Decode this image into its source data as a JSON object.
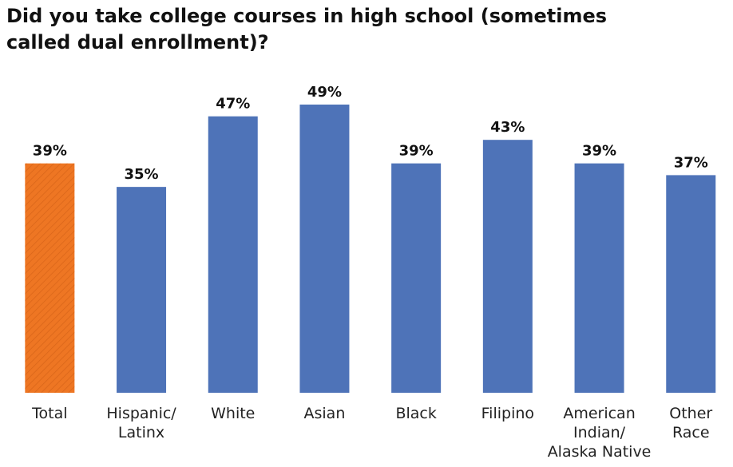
{
  "chart_data": {
    "type": "bar",
    "title": "Did you take college courses in high school (sometimes called dual enrollment)?",
    "categories": [
      [
        "Total"
      ],
      [
        "Hispanic/",
        "Latinx"
      ],
      [
        "White"
      ],
      [
        "Asian"
      ],
      [
        "Black"
      ],
      [
        "Filipino"
      ],
      [
        "American",
        "Indian/",
        "Alaska Native"
      ],
      [
        "Other",
        "Race"
      ]
    ],
    "values": [
      39,
      35,
      47,
      49,
      39,
      43,
      39,
      37
    ],
    "value_labels": [
      "39%",
      "35%",
      "47%",
      "49%",
      "39%",
      "43%",
      "39%",
      "37%"
    ],
    "colors": [
      "#ee7623",
      "#4e73b8",
      "#4e73b8",
      "#4e73b8",
      "#4e73b8",
      "#4e73b8",
      "#4e73b8",
      "#4e73b8"
    ],
    "hatched": [
      true,
      false,
      false,
      false,
      false,
      false,
      false,
      false
    ]
  }
}
